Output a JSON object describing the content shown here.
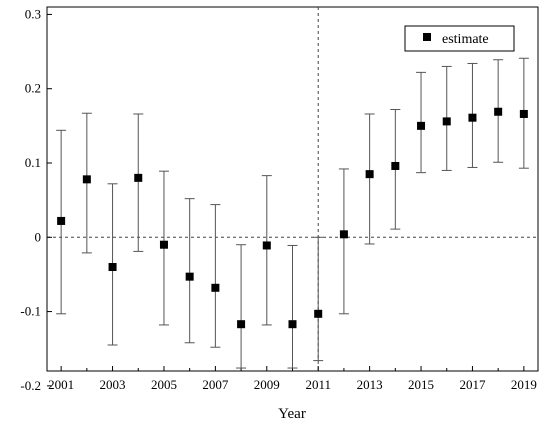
{
  "chart_data": {
    "type": "scatter",
    "title": "",
    "xlabel": "Year",
    "ylabel": "",
    "xlim": [
      2000.45,
      2019.55
    ],
    "ylim": [
      -0.18,
      0.31
    ],
    "x_ticks": [
      2001,
      2003,
      2005,
      2007,
      2009,
      2011,
      2013,
      2015,
      2017,
      2019
    ],
    "x_tick_labels": [
      "2001",
      "2003",
      "2005",
      "2007",
      "2009",
      "2011",
      "2013",
      "2015",
      "2017",
      "2019"
    ],
    "y_ticks": [
      -0.2,
      -0.1,
      0,
      0.1,
      0.2,
      0.3
    ],
    "y_tick_labels": [
      "-0.2",
      "-0.1",
      "0",
      "0.1",
      "0.2",
      "0.3"
    ],
    "reference_lines": {
      "horizontal_y": 0,
      "vertical_x": 2011
    },
    "legend": {
      "entries": [
        "estimate"
      ],
      "placement": "top-right"
    },
    "grid": false,
    "series": [
      {
        "name": "estimate",
        "marker": "square",
        "color": "#000000",
        "x": [
          2001,
          2002,
          2003,
          2004,
          2005,
          2006,
          2007,
          2008,
          2009,
          2010,
          2011,
          2012,
          2013,
          2014,
          2015,
          2016,
          2017,
          2018,
          2019
        ],
        "y": [
          0.022,
          0.078,
          -0.04,
          0.08,
          -0.01,
          -0.053,
          -0.068,
          -0.117,
          -0.011,
          -0.117,
          -0.103,
          0.004,
          0.085,
          0.096,
          0.15,
          0.156,
          0.161,
          0.169,
          0.166
        ],
        "ci_low": [
          -0.103,
          -0.021,
          -0.145,
          -0.019,
          -0.118,
          -0.142,
          -0.148,
          -0.176,
          -0.118,
          -0.176,
          -0.166,
          -0.103,
          -0.009,
          0.011,
          0.087,
          0.09,
          0.094,
          0.101,
          0.093
        ],
        "ci_high": [
          0.144,
          0.167,
          0.072,
          0.166,
          0.089,
          0.052,
          0.044,
          -0.01,
          0.083,
          -0.011,
          0.0,
          0.092,
          0.166,
          0.172,
          0.222,
          0.23,
          0.234,
          0.239,
          0.241
        ]
      }
    ]
  }
}
